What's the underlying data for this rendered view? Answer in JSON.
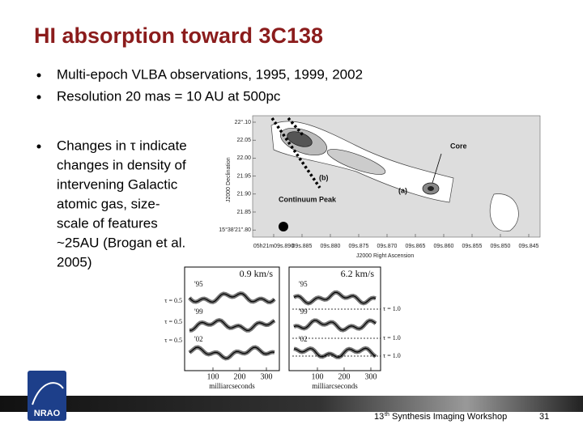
{
  "title": "HI absorption toward 3C138",
  "bullets": [
    "Multi-epoch VLBA observations, 1995, 1999, 2002",
    "Resolution 20 mas = 10 AU at 500pc"
  ],
  "bullet3_lines": [
    "Changes in τ indicate",
    "changes in density of",
    "intervening Galactic",
    "atomic gas, size-",
    "scale of features",
    "~25AU (Brogan et al.",
    "2005)"
  ],
  "map": {
    "labels": {
      "core": "Core",
      "peak": "Continuum Peak",
      "a": "(a)",
      "b": "(b)"
    },
    "yticks": [
      "22°.10",
      "22.05",
      "22.00",
      "21.95",
      "21.90",
      "21.85",
      "15°38'21\".80"
    ],
    "xticks": [
      "05h21m09s.890",
      "09s.885",
      "09s.880",
      "09s.875",
      "09s.870",
      "09s.865",
      "09s.860",
      "09s.855",
      "09s.850",
      "09s.845"
    ],
    "ylabel": "J2000 Declination",
    "xlabel": "J2000 Right Ascension"
  },
  "spectra": {
    "panels": [
      {
        "title": "0.9 km/s",
        "tau": [
          "τ = 0.5",
          "τ = 0.5",
          "τ = 0.5"
        ]
      },
      {
        "title": "6.2 km/s",
        "tau": [
          "τ = 1.0",
          "τ = 1.0",
          "τ = 1.0"
        ]
      }
    ],
    "epochs": [
      "'95",
      "'99",
      "'02"
    ],
    "xticks": [
      "100",
      "200",
      "300"
    ],
    "xlabel": "milliarcseconds"
  },
  "footer": {
    "logo": "NRAO",
    "number": "13",
    "suffix": "th",
    "text": "Synthesis Imaging Workshop",
    "page": "31"
  }
}
